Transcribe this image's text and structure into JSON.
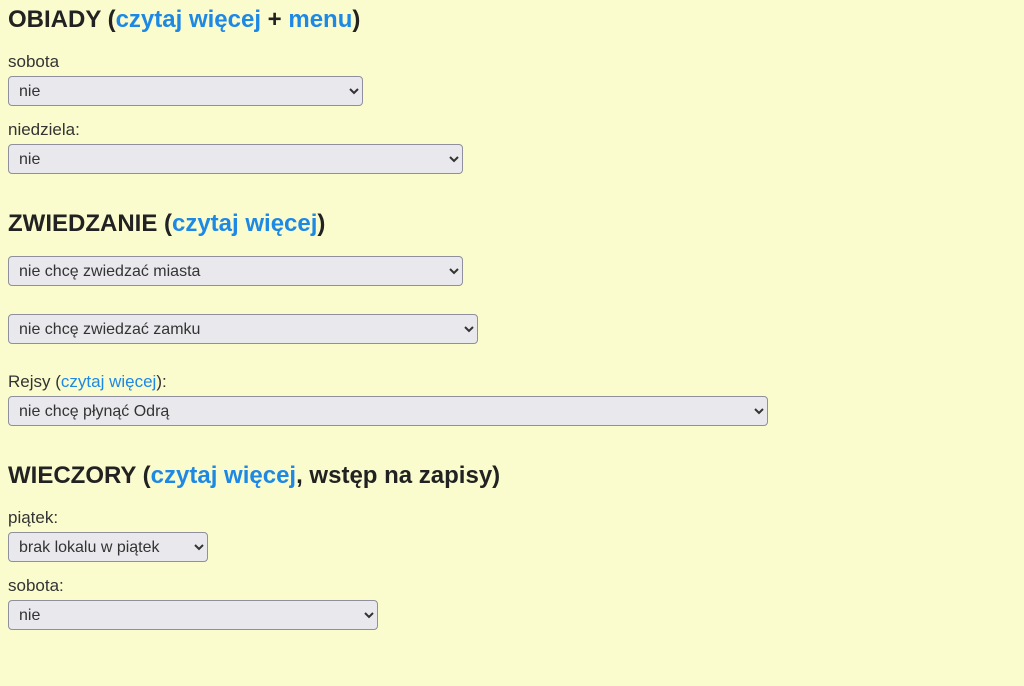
{
  "sections": {
    "obiady": {
      "title_prefix": "OBIADY (",
      "link_czytaj": "czytaj więcej",
      "plus": " + ",
      "link_menu": "menu",
      "title_suffix": ")",
      "sobota_label": "sobota",
      "sobota_value": "nie",
      "niedziela_label": "niedziela:",
      "niedziela_value": "nie"
    },
    "zwiedzanie": {
      "title_prefix": "ZWIEDZANIE (",
      "link_czytaj": "czytaj więcej",
      "title_suffix": ")",
      "miasto_value": "nie chcę zwiedzać miasta",
      "zamek_value": "nie chcę zwiedzać zamku",
      "rejsy_prefix": "Rejsy (",
      "rejsy_link": "czytaj więcej",
      "rejsy_suffix": "):",
      "rejsy_value": "nie chcę płynąć Odrą"
    },
    "wieczory": {
      "title_prefix": "WIECZORY (",
      "link_czytaj": "czytaj więcej",
      "title_mid": ", wstęp na zapisy)",
      "piatek_label": "piątek:",
      "piatek_value": "brak lokalu w piątek",
      "sobota_label": "sobota:",
      "sobota_value": "nie"
    }
  }
}
